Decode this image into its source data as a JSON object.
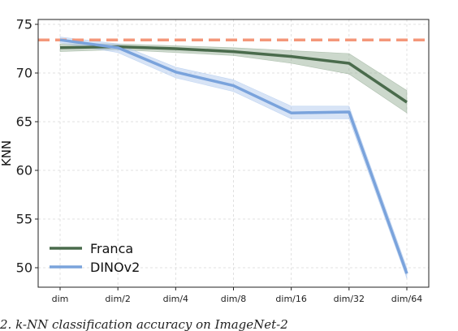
{
  "chart_data": {
    "type": "line",
    "x": [
      "dim",
      "dim/2",
      "dim/4",
      "dim/8",
      "dim/16",
      "dim/32",
      "dim/64"
    ],
    "ylabel": "KNN",
    "xlabel": "",
    "ylim": [
      48,
      75.5
    ],
    "yticks": [
      50,
      55,
      60,
      65,
      70,
      75
    ],
    "grid": true,
    "legend": "bottom-left",
    "reference_line": {
      "y": 73.4,
      "color": "#f4977a",
      "style": "dashed"
    },
    "series": [
      {
        "name": "Franca",
        "color": "#4a6b4c",
        "band_color": "#8fa88f",
        "values": [
          72.6,
          72.7,
          72.5,
          72.2,
          71.7,
          71.0,
          67.0
        ],
        "lower": [
          72.2,
          72.4,
          72.1,
          71.8,
          71.0,
          69.9,
          65.9
        ],
        "upper": [
          73.0,
          73.0,
          72.8,
          72.6,
          72.3,
          72.0,
          68.2
        ]
      },
      {
        "name": "DINOv2",
        "color": "#7aa3dc",
        "band_color": "#a9c4ec",
        "values": [
          73.4,
          72.6,
          70.1,
          68.7,
          65.9,
          66.0,
          49.4
        ],
        "lower": [
          73.1,
          72.1,
          69.5,
          68.1,
          65.3,
          65.3,
          48.9
        ],
        "upper": [
          73.7,
          73.0,
          70.6,
          69.3,
          66.6,
          66.6,
          50.0
        ]
      }
    ]
  },
  "caption": "2. k-NN classification accuracy on ImageNet-2"
}
